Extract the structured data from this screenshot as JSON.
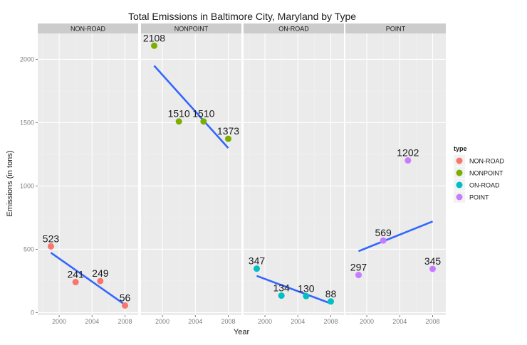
{
  "chart_data": {
    "type": "scatter",
    "title": "Total Emissions in Baltimore City, Maryland by Type",
    "xlabel": "Year",
    "ylabel": "Emissions (in tons)",
    "xlim": [
      1997.4,
      2009.6
    ],
    "ylim": [
      -20,
      2205
    ],
    "x_ticks": [
      2000,
      2004,
      2008
    ],
    "x_tick_labels": [
      "2000",
      "2004",
      "2008"
    ],
    "y_ticks": [
      0,
      500,
      1000,
      1500,
      2000
    ],
    "y_tick_labels": [
      "0",
      "500",
      "1000",
      "1500",
      "2000"
    ],
    "grid": true,
    "legend_title": "type",
    "legend_position": "right",
    "facets": [
      {
        "name": "NON-ROAD",
        "color": "#F8766D",
        "points": [
          {
            "x": 1999,
            "y": 523,
            "label": "523"
          },
          {
            "x": 2002,
            "y": 241,
            "label": "241"
          },
          {
            "x": 2005,
            "y": 249,
            "label": "249"
          },
          {
            "x": 2008,
            "y": 56,
            "label": "56"
          }
        ],
        "trend": [
          {
            "x": 1999,
            "y": 473
          },
          {
            "x": 2008,
            "y": 62
          }
        ]
      },
      {
        "name": "NONPOINT",
        "color": "#7CAE00",
        "points": [
          {
            "x": 1999,
            "y": 2108,
            "label": "2108"
          },
          {
            "x": 2002,
            "y": 1510,
            "label": "1510"
          },
          {
            "x": 2005,
            "y": 1510,
            "label": "1510"
          },
          {
            "x": 2008,
            "y": 1373,
            "label": "1373"
          }
        ],
        "trend": [
          {
            "x": 1999,
            "y": 1950
          },
          {
            "x": 2008,
            "y": 1300
          }
        ]
      },
      {
        "name": "ON-ROAD",
        "color": "#00BFC4",
        "points": [
          {
            "x": 1999,
            "y": 347,
            "label": "347"
          },
          {
            "x": 2002,
            "y": 134,
            "label": "134"
          },
          {
            "x": 2005,
            "y": 130,
            "label": "130"
          },
          {
            "x": 2008,
            "y": 88,
            "label": "88"
          }
        ],
        "trend": [
          {
            "x": 1999,
            "y": 290
          },
          {
            "x": 2008,
            "y": 72
          }
        ]
      },
      {
        "name": "POINT",
        "color": "#C77CFF",
        "points": [
          {
            "x": 1999,
            "y": 297,
            "label": "297"
          },
          {
            "x": 2002,
            "y": 569,
            "label": "569"
          },
          {
            "x": 2005,
            "y": 1202,
            "label": "1202"
          },
          {
            "x": 2008,
            "y": 345,
            "label": "345"
          }
        ],
        "trend": [
          {
            "x": 1999,
            "y": 485
          },
          {
            "x": 2008,
            "y": 720
          }
        ]
      }
    ],
    "trend_color": "#3366FF",
    "panel_background": "#EBEBEB",
    "strip_background": "#CCCCCC"
  }
}
